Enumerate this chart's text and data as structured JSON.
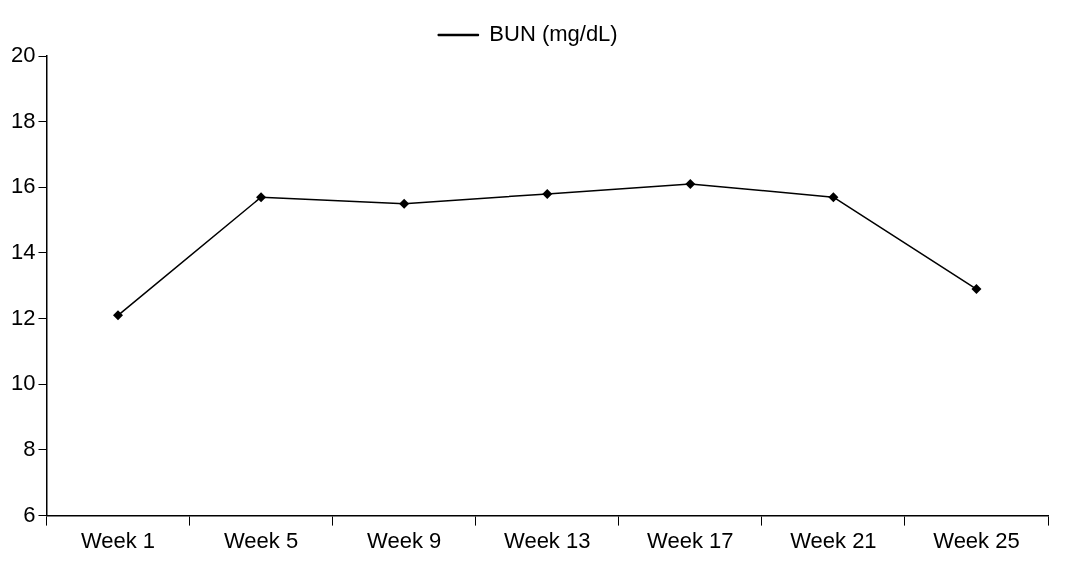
{
  "chart_data": {
    "type": "line",
    "categories": [
      "Week 1",
      "Week 5",
      "Week 9",
      "Week 13",
      "Week 17",
      "Week 21",
      "Week 25"
    ],
    "series": [
      {
        "name": "BUN (mg/dL)",
        "color": "#000000",
        "values": [
          12.1,
          15.7,
          15.5,
          15.8,
          16.1,
          15.7,
          12.9
        ]
      }
    ],
    "ylim": [
      6,
      20
    ],
    "yticks": [
      6,
      8,
      10,
      12,
      14,
      16,
      18,
      20
    ],
    "grid": false,
    "legend": "top",
    "marker": "diamond",
    "line_style": "solid"
  }
}
